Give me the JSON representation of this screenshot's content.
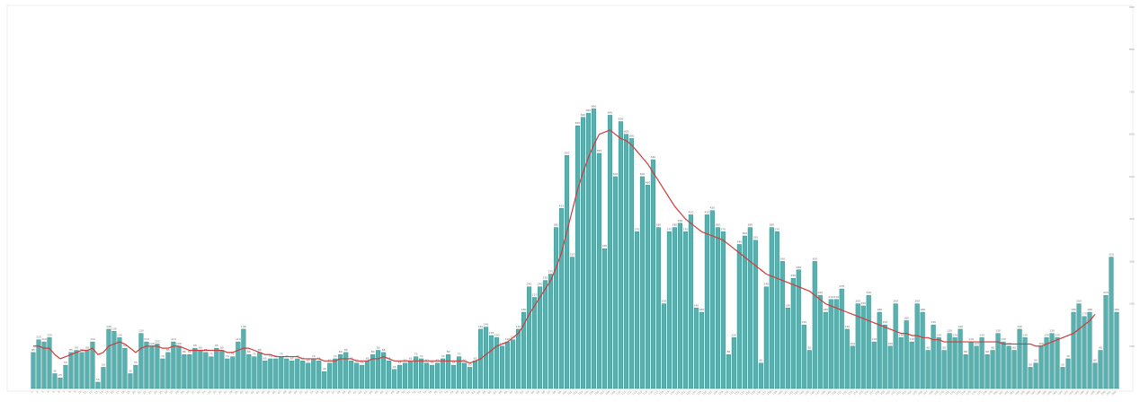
{
  "chart_data": {
    "type": "bar",
    "title": "",
    "xlabel": "",
    "ylabel": "",
    "ylim": [
      0,
      900
    ],
    "yticks": [
      100,
      200,
      300,
      400,
      500,
      600,
      700,
      800,
      900
    ],
    "grid": false,
    "legend": "none",
    "bar_color": "#5ab0ae",
    "bar_edge_color": "#2f8583",
    "trend_color": "#d03a3a",
    "series": [
      {
        "type": "bar",
        "values": [
          85,
          115,
          110,
          120,
          35,
          25,
          55,
          85,
          90,
          85,
          90,
          110,
          15,
          50,
          140,
          135,
          120,
          95,
          35,
          55,
          130,
          110,
          100,
          105,
          70,
          85,
          110,
          100,
          80,
          80,
          95,
          90,
          85,
          75,
          95,
          90,
          70,
          75,
          110,
          140,
          80,
          75,
          85,
          65,
          70,
          70,
          75,
          70,
          65,
          70,
          65,
          60,
          70,
          65,
          40,
          60,
          70,
          80,
          85,
          65,
          60,
          55,
          65,
          80,
          90,
          85,
          65,
          45,
          55,
          60,
          65,
          75,
          70,
          60,
          55,
          60,
          70,
          80,
          55,
          75,
          60,
          50,
          65,
          140,
          145,
          125,
          120,
          100,
          110,
          115,
          140,
          180,
          240,
          215,
          240,
          255,
          270,
          380,
          425,
          550,
          310,
          620,
          640,
          650,
          660,
          555,
          330,
          645,
          500,
          630,
          600,
          590,
          370,
          500,
          480,
          540,
          380,
          200,
          370,
          380,
          390,
          370,
          410,
          190,
          180,
          410,
          420,
          380,
          370,
          80,
          120,
          340,
          360,
          380,
          350,
          60,
          240,
          380,
          370,
          300,
          190,
          260,
          280,
          150,
          90,
          300,
          220,
          180,
          210,
          210,
          235,
          140,
          100,
          200,
          195,
          220,
          110,
          180,
          150,
          100,
          200,
          120,
          160,
          110,
          200,
          180,
          90,
          150,
          120,
          90,
          130,
          120,
          140,
          80,
          110,
          100,
          120,
          80,
          90,
          130,
          110,
          100,
          90,
          140,
          120,
          50,
          60,
          100,
          120,
          130,
          120,
          50,
          70,
          180,
          200,
          170,
          180,
          60,
          90,
          220,
          310,
          180
        ]
      },
      {
        "type": "line",
        "name": "",
        "values": [
          100,
          100,
          95,
          95,
          80,
          70,
          75,
          80,
          85,
          90,
          90,
          95,
          80,
          85,
          100,
          105,
          110,
          105,
          95,
          85,
          95,
          100,
          100,
          100,
          95,
          95,
          100,
          100,
          95,
          90,
          90,
          90,
          90,
          90,
          90,
          90,
          85,
          85,
          90,
          95,
          95,
          90,
          85,
          80,
          80,
          75,
          75,
          75,
          75,
          75,
          70,
          70,
          70,
          70,
          65,
          65,
          65,
          70,
          70,
          70,
          65,
          65,
          65,
          70,
          70,
          75,
          70,
          65,
          65,
          65,
          65,
          65,
          65,
          65,
          65,
          65,
          65,
          65,
          65,
          65,
          65,
          60,
          65,
          70,
          80,
          90,
          100,
          105,
          110,
          120,
          130,
          150,
          175,
          195,
          215,
          235,
          255,
          285,
          320,
          370,
          420,
          470,
          510,
          545,
          575,
          600,
          605,
          610,
          600,
          590,
          585,
          575,
          560,
          545,
          530,
          510,
          490,
          470,
          450,
          430,
          415,
          400,
          390,
          380,
          370,
          365,
          360,
          355,
          350,
          340,
          330,
          320,
          310,
          300,
          290,
          280,
          270,
          265,
          260,
          255,
          250,
          245,
          240,
          235,
          230,
          220,
          210,
          200,
          195,
          190,
          185,
          180,
          175,
          170,
          165,
          160,
          155,
          150,
          145,
          140,
          135,
          130,
          130,
          125,
          125,
          120,
          120,
          115,
          115,
          110,
          110,
          110,
          110,
          110,
          110,
          110,
          110,
          110,
          110,
          110,
          105,
          105,
          105,
          105,
          105,
          105,
          100,
          100,
          105,
          110,
          115,
          120,
          125,
          130,
          140,
          150,
          160,
          175
        ]
      }
    ]
  }
}
